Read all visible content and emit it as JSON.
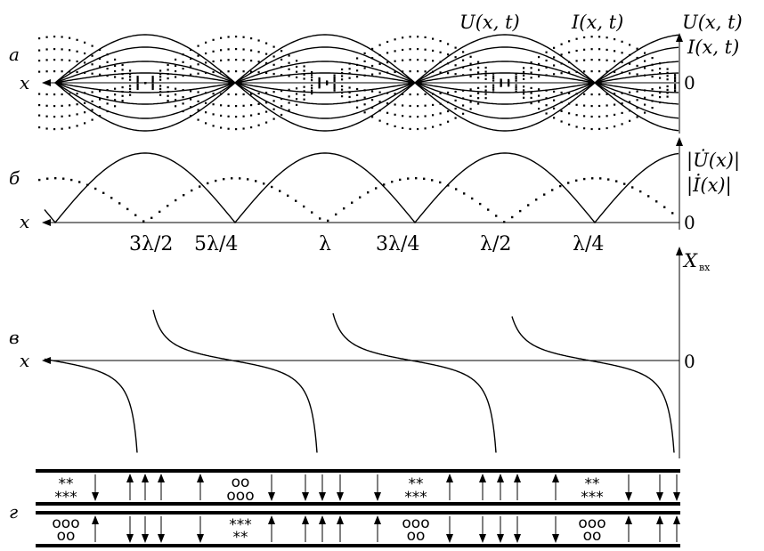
{
  "panels": {
    "a": {
      "letter": "а",
      "curve_label_u": "U(x, t)",
      "curve_label_i": "I(x, t)",
      "axis_label_u": "U(x, t)",
      "axis_label_i": "I(x, t)",
      "x_label": "x",
      "zero_label": "0"
    },
    "b": {
      "letter": "б",
      "axis_label_u": "|U̇(x)|",
      "axis_label_i": "|İ(x)|",
      "x_label": "x",
      "zero_label": "0"
    },
    "distance_labels": [
      "3λ/2",
      "5λ/4",
      "λ",
      "3λ/4",
      "λ/2",
      "λ/4"
    ],
    "v": {
      "letter": "в",
      "axis_label": "X",
      "axis_sub": "вх",
      "x_label": "x",
      "zero_label": "0"
    },
    "g": {
      "letter": "г",
      "top_groups": [
        {
          "row1": "**",
          "row2": "***"
        },
        {
          "row1": "oo",
          "row2": "ooo"
        },
        {
          "row1": "**",
          "row2": "***"
        },
        {
          "row1": "**",
          "row2": "***"
        }
      ],
      "bottom_groups": [
        {
          "row1": "ooo",
          "row2": "oo"
        },
        {
          "row1": "***",
          "row2": "**"
        },
        {
          "row1": "ooo",
          "row2": "oo"
        },
        {
          "row1": "ooo",
          "row2": "oo"
        }
      ]
    }
  },
  "colors": {
    "ink": "#000000",
    "background": "#ffffff"
  }
}
